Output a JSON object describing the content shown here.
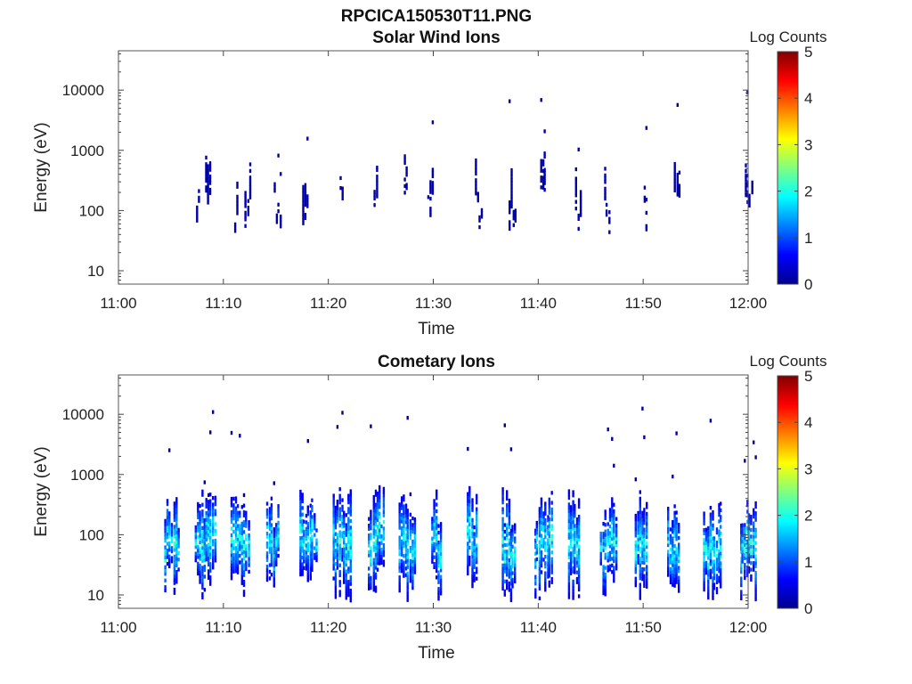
{
  "figure": {
    "title": "RPCICA150530T11.PNG"
  },
  "chart_data": [
    {
      "type": "heatmap",
      "title": "Solar Wind Ions",
      "xlabel": "Time",
      "ylabel": "Energy (eV)",
      "x_ticks": [
        "11:00",
        "11:10",
        "11:20",
        "11:30",
        "11:40",
        "11:50",
        "12:00"
      ],
      "x_range_minutes": [
        0,
        60
      ],
      "y_scale": "log",
      "y_ticks": [
        "10",
        "100",
        "1000",
        "10000"
      ],
      "y_range_eV": [
        6,
        45000
      ],
      "colorbar": {
        "label": "Log Counts",
        "range": [
          0,
          5
        ],
        "ticks": [
          "0",
          "1",
          "2",
          "3",
          "4",
          "5"
        ]
      },
      "burst_minutes": [
        7.5,
        8.4,
        11.2,
        12.2,
        14.9,
        17.7,
        21.2,
        24.5,
        27.3,
        29.6,
        34.1,
        37.3,
        40.3,
        43.7,
        46.4,
        50.2,
        53.1,
        59.8
      ],
      "typical_log_counts": 0.1
    },
    {
      "type": "heatmap",
      "title": "Cometary Ions",
      "xlabel": "Time",
      "ylabel": "Energy (eV)",
      "x_ticks": [
        "11:00",
        "11:10",
        "11:20",
        "11:30",
        "11:40",
        "11:50",
        "12:00"
      ],
      "x_range_minutes": [
        0,
        60
      ],
      "y_scale": "log",
      "y_ticks": [
        "10",
        "100",
        "1000",
        "10000"
      ],
      "y_range_eV": [
        6,
        45000
      ],
      "colorbar": {
        "label": "Log Counts",
        "range": [
          0,
          5
        ],
        "ticks": [
          "0",
          "1",
          "2",
          "3",
          "4",
          "5"
        ]
      },
      "burst_minutes": [
        5.0,
        7.9,
        11.3,
        14.7,
        17.8,
        21.0,
        24.4,
        27.3,
        30.4,
        33.8,
        37.1,
        40.2,
        43.4,
        46.5,
        49.8,
        52.9,
        56.3,
        59.8
      ],
      "typical_log_counts": 1.0,
      "peak_log_counts": 2.2
    }
  ]
}
